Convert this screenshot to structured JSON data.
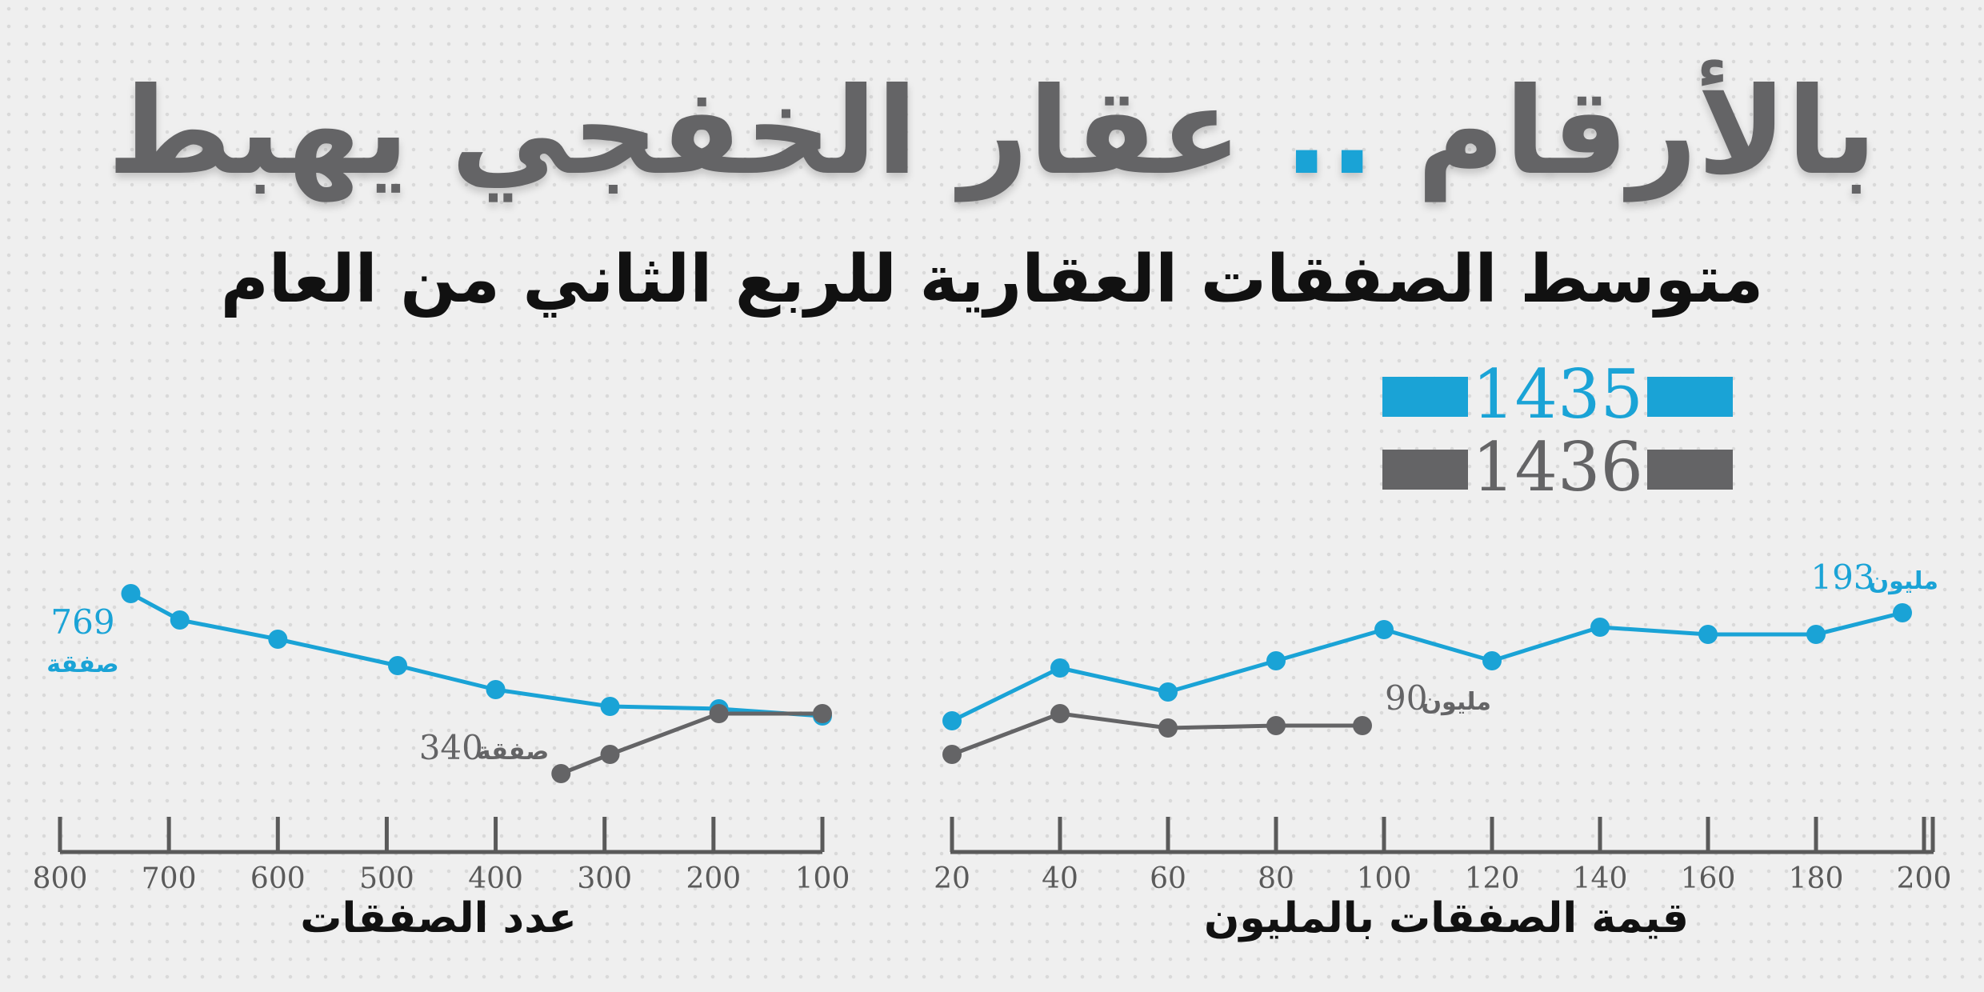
{
  "title": {
    "main": "بالأرقام",
    "dots": "..",
    "rest": "عقار الخفجي يهبط"
  },
  "subtitle": "متوسط الصفقات العقارية للربع الثاني من العام",
  "legend": [
    {
      "label": "1435",
      "color": "#1aa3d6"
    },
    {
      "label": "1436",
      "color": "#646466"
    }
  ],
  "colors": {
    "series_1435": "#1aa3d6",
    "series_1436": "#646466",
    "axis": "#5a5a5a"
  },
  "chart_data": [
    {
      "type": "line",
      "xlabel": "عدد الصفقات",
      "ylabel": "",
      "x_ticks": [
        800,
        700,
        600,
        500,
        400,
        300,
        200,
        100
      ],
      "xlim": [
        800,
        100
      ],
      "series": [
        {
          "name": "1435",
          "x": [
            735,
            690,
            600,
            490,
            400,
            295,
            195,
            100
          ],
          "rel": [
            0.86,
            0.75,
            0.67,
            0.56,
            0.46,
            0.39,
            0.38,
            0.35
          ]
        },
        {
          "name": "1436",
          "x": [
            340,
            295,
            195,
            100
          ],
          "rel": [
            0.11,
            0.19,
            0.36,
            0.36
          ]
        }
      ],
      "callouts": [
        {
          "series": "1435",
          "value": "769",
          "unit": "صفقة"
        },
        {
          "series": "1436",
          "value": "340",
          "unit": "صفقة"
        }
      ]
    },
    {
      "type": "line",
      "xlabel": "قيمة الصفقات بالمليون",
      "ylabel": "",
      "x_ticks": [
        20,
        40,
        60,
        80,
        100,
        120,
        140,
        160,
        180,
        200
      ],
      "xlim": [
        20,
        200
      ],
      "series": [
        {
          "name": "1435",
          "x": [
            20,
            40,
            60,
            80,
            100,
            120,
            140,
            160,
            180,
            196
          ],
          "rel": [
            0.33,
            0.55,
            0.45,
            0.58,
            0.71,
            0.58,
            0.72,
            0.69,
            0.69,
            0.78
          ]
        },
        {
          "name": "1436",
          "x": [
            20,
            40,
            60,
            80,
            96
          ],
          "rel": [
            0.19,
            0.36,
            0.3,
            0.31,
            0.31
          ]
        }
      ],
      "callouts": [
        {
          "series": "1435",
          "value": "193",
          "unit": "مليون"
        },
        {
          "series": "1436",
          "value": "90",
          "unit": "مليون"
        }
      ]
    }
  ]
}
